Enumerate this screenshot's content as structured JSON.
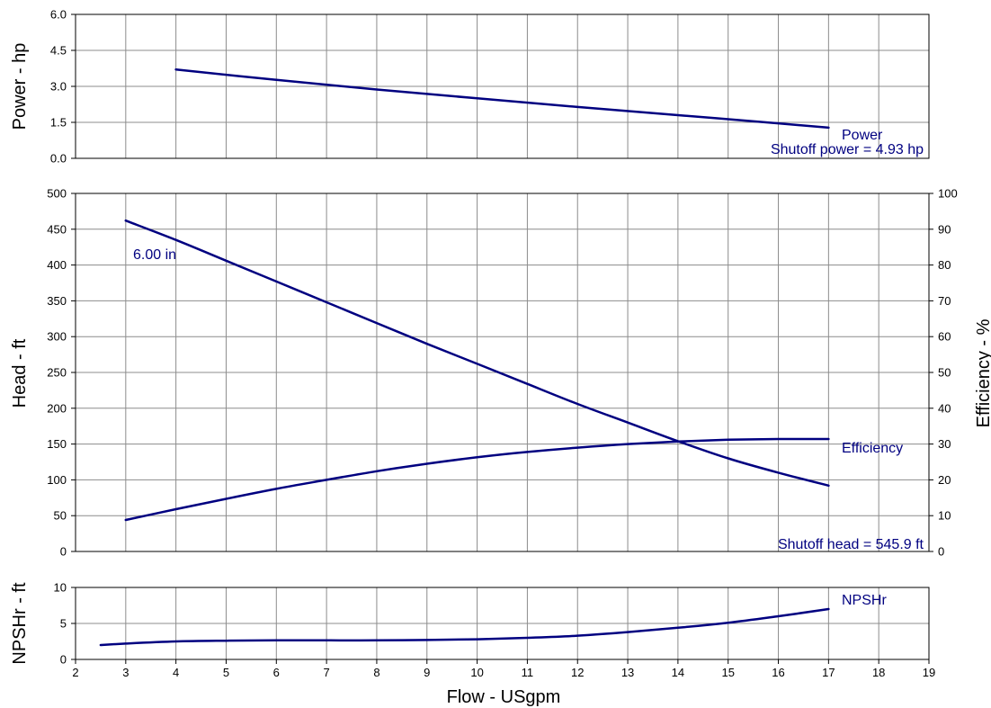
{
  "chart_data": [
    {
      "type": "line",
      "panel": "power",
      "ylabel": "Power - hp",
      "ylim": [
        0,
        6
      ],
      "yticks": [
        "0.0",
        "1.5",
        "3.0",
        "4.5",
        "6.0"
      ],
      "grid": true,
      "series": [
        {
          "name": "Power",
          "x": [
            4,
            6,
            8,
            10,
            12,
            14,
            16,
            17
          ],
          "y": [
            3.7,
            3.27,
            2.87,
            2.5,
            2.14,
            1.8,
            1.46,
            1.28
          ]
        }
      ],
      "annotations": [
        "Shutoff power = 4.93 hp"
      ]
    },
    {
      "type": "line",
      "panel": "head-efficiency",
      "ylabel": "Head - ft",
      "y2label": "Efficiency - %",
      "ylim": [
        0,
        500
      ],
      "y2lim": [
        0,
        100
      ],
      "yticks": [
        "0",
        "50",
        "100",
        "150",
        "200",
        "250",
        "300",
        "350",
        "400",
        "450",
        "500"
      ],
      "y2ticks": [
        "0",
        "10",
        "20",
        "30",
        "40",
        "50",
        "60",
        "70",
        "80",
        "90",
        "100"
      ],
      "grid": true,
      "series": [
        {
          "name": "6.00 in",
          "axis": "left",
          "x": [
            3,
            4,
            5,
            6,
            7,
            8,
            9,
            10,
            11,
            12,
            13,
            14,
            15,
            16,
            17
          ],
          "y": [
            462,
            435,
            406,
            377,
            348,
            319,
            290,
            262,
            234,
            206,
            180,
            154,
            130,
            110,
            92
          ]
        },
        {
          "name": "Efficiency",
          "axis": "right",
          "x": [
            3,
            4,
            5,
            6,
            7,
            8,
            9,
            10,
            11,
            12,
            13,
            14,
            15,
            16,
            17
          ],
          "y": [
            8.8,
            11.8,
            14.7,
            17.5,
            20.0,
            22.4,
            24.5,
            26.3,
            27.8,
            29.0,
            30.0,
            30.7,
            31.2,
            31.4,
            31.4
          ]
        }
      ],
      "annotations": [
        "Shutoff head = 545.9 ft"
      ]
    },
    {
      "type": "line",
      "panel": "npshr",
      "ylabel": "NPSHr - ft",
      "xlabel": "Flow - USgpm",
      "xlim": [
        2,
        19
      ],
      "ylim": [
        0,
        10
      ],
      "xticks": [
        "2",
        "3",
        "4",
        "5",
        "6",
        "7",
        "8",
        "9",
        "10",
        "11",
        "12",
        "13",
        "14",
        "15",
        "16",
        "17",
        "18",
        "19"
      ],
      "yticks": [
        "0",
        "5",
        "10"
      ],
      "grid": true,
      "series": [
        {
          "name": "NPSHr",
          "x": [
            2.5,
            3,
            4,
            5,
            6,
            7,
            8,
            9,
            10,
            11,
            12,
            13,
            14,
            15,
            16,
            17
          ],
          "y": [
            2.0,
            2.2,
            2.5,
            2.6,
            2.65,
            2.65,
            2.65,
            2.7,
            2.8,
            3.0,
            3.3,
            3.8,
            4.4,
            5.1,
            6.0,
            7.0
          ]
        }
      ]
    }
  ],
  "colors": {
    "curve": "#000080",
    "grid": "#8c8c8c",
    "frame": "#000000",
    "background": "#ffffff"
  }
}
